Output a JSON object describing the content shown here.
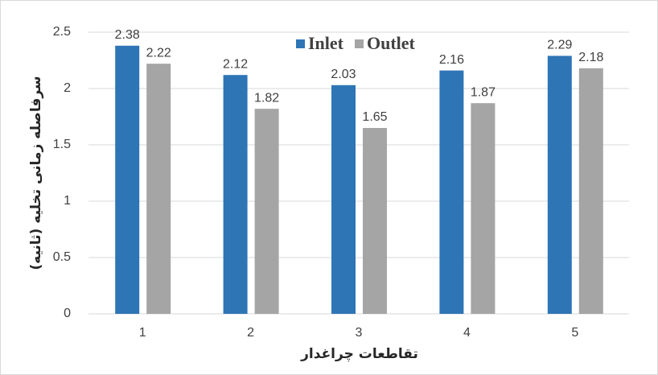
{
  "chart_data": {
    "type": "bar",
    "categories": [
      "1",
      "2",
      "3",
      "4",
      "5"
    ],
    "series": [
      {
        "name": "Inlet",
        "color": "#2e75b6",
        "values": [
          2.38,
          2.12,
          2.03,
          2.16,
          2.29
        ]
      },
      {
        "name": "Outlet",
        "color": "#a5a5a5",
        "values": [
          2.22,
          1.82,
          1.65,
          1.87,
          2.18
        ]
      }
    ],
    "ylim": [
      0,
      2.5
    ],
    "yticks": [
      0,
      0.5,
      1,
      1.5,
      2,
      2.5
    ],
    "grid": true,
    "x_label": "تقاطعات چراغدار",
    "y_label": "سرفاصله زمانی تخلیه (ثانیه)",
    "legend": "top"
  }
}
